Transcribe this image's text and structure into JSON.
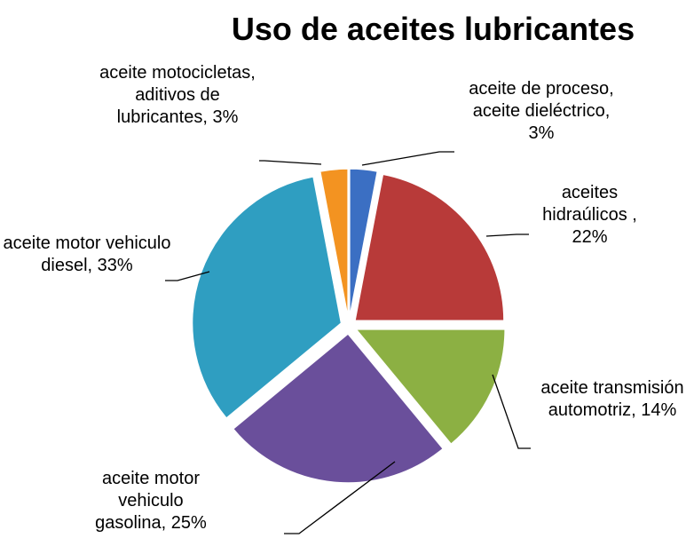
{
  "chart_data": {
    "type": "pie",
    "title": "Uso de aceites lubricantes",
    "categories": [
      "aceite de proceso, aceite dieléctrico,",
      "aceites hidraúlicos ,",
      "aceite transmisión automotriz,",
      "aceite motor vehiculo gasolina,",
      "aceite motor vehiculo diesel,",
      "aceite motocicletas, aditivos de lubricantes,"
    ],
    "values": [
      3,
      22,
      14,
      25,
      33,
      3
    ],
    "value_labels": [
      "3%",
      "22%",
      "14%",
      "25%",
      "33%",
      "3%"
    ],
    "colors": [
      "#3b6fc3",
      "#b83a39",
      "#8cb043",
      "#6a4f9b",
      "#2f9ec1",
      "#f39321"
    ]
  }
}
